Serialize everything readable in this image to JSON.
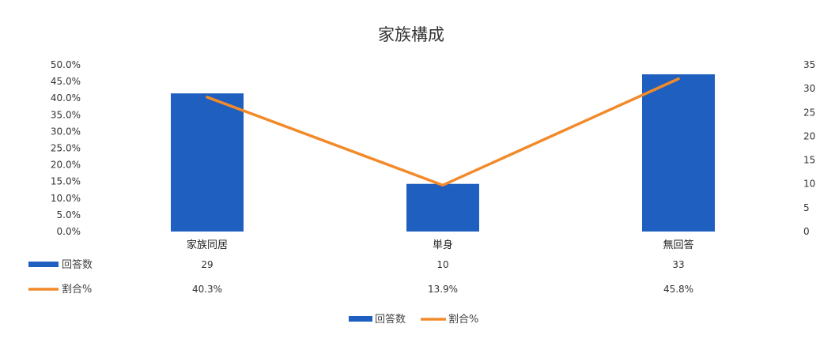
{
  "chart_data": {
    "type": "bar",
    "title": "家族構成",
    "categories": [
      "家族同居",
      "単身",
      "無回答"
    ],
    "series": [
      {
        "name": "回答数",
        "type": "bar",
        "axis": "right",
        "values": [
          29,
          10,
          33
        ],
        "color": "#1f5fbf"
      },
      {
        "name": "割合%",
        "type": "line",
        "axis": "left",
        "values": [
          40.3,
          13.9,
          45.8
        ],
        "color": "#f28a2a"
      }
    ],
    "y_left": {
      "min": 0,
      "max": 50,
      "ticks": [
        "0.0%",
        "5.0%",
        "10.0%",
        "15.0%",
        "20.0%",
        "25.0%",
        "30.0%",
        "35.0%",
        "40.0%",
        "45.0%",
        "50.0%"
      ]
    },
    "y_right": {
      "min": 0,
      "max": 35,
      "ticks": [
        "0",
        "5",
        "10",
        "15",
        "20",
        "25",
        "30",
        "35"
      ]
    },
    "table": {
      "rows": [
        {
          "label": "回答数",
          "cells": [
            "29",
            "10",
            "33"
          ]
        },
        {
          "label": "割合%",
          "cells": [
            "40.3%",
            "13.9%",
            "45.8%"
          ]
        }
      ]
    },
    "legend": [
      "回答数",
      "割合%"
    ],
    "legend_position": "bottom"
  }
}
